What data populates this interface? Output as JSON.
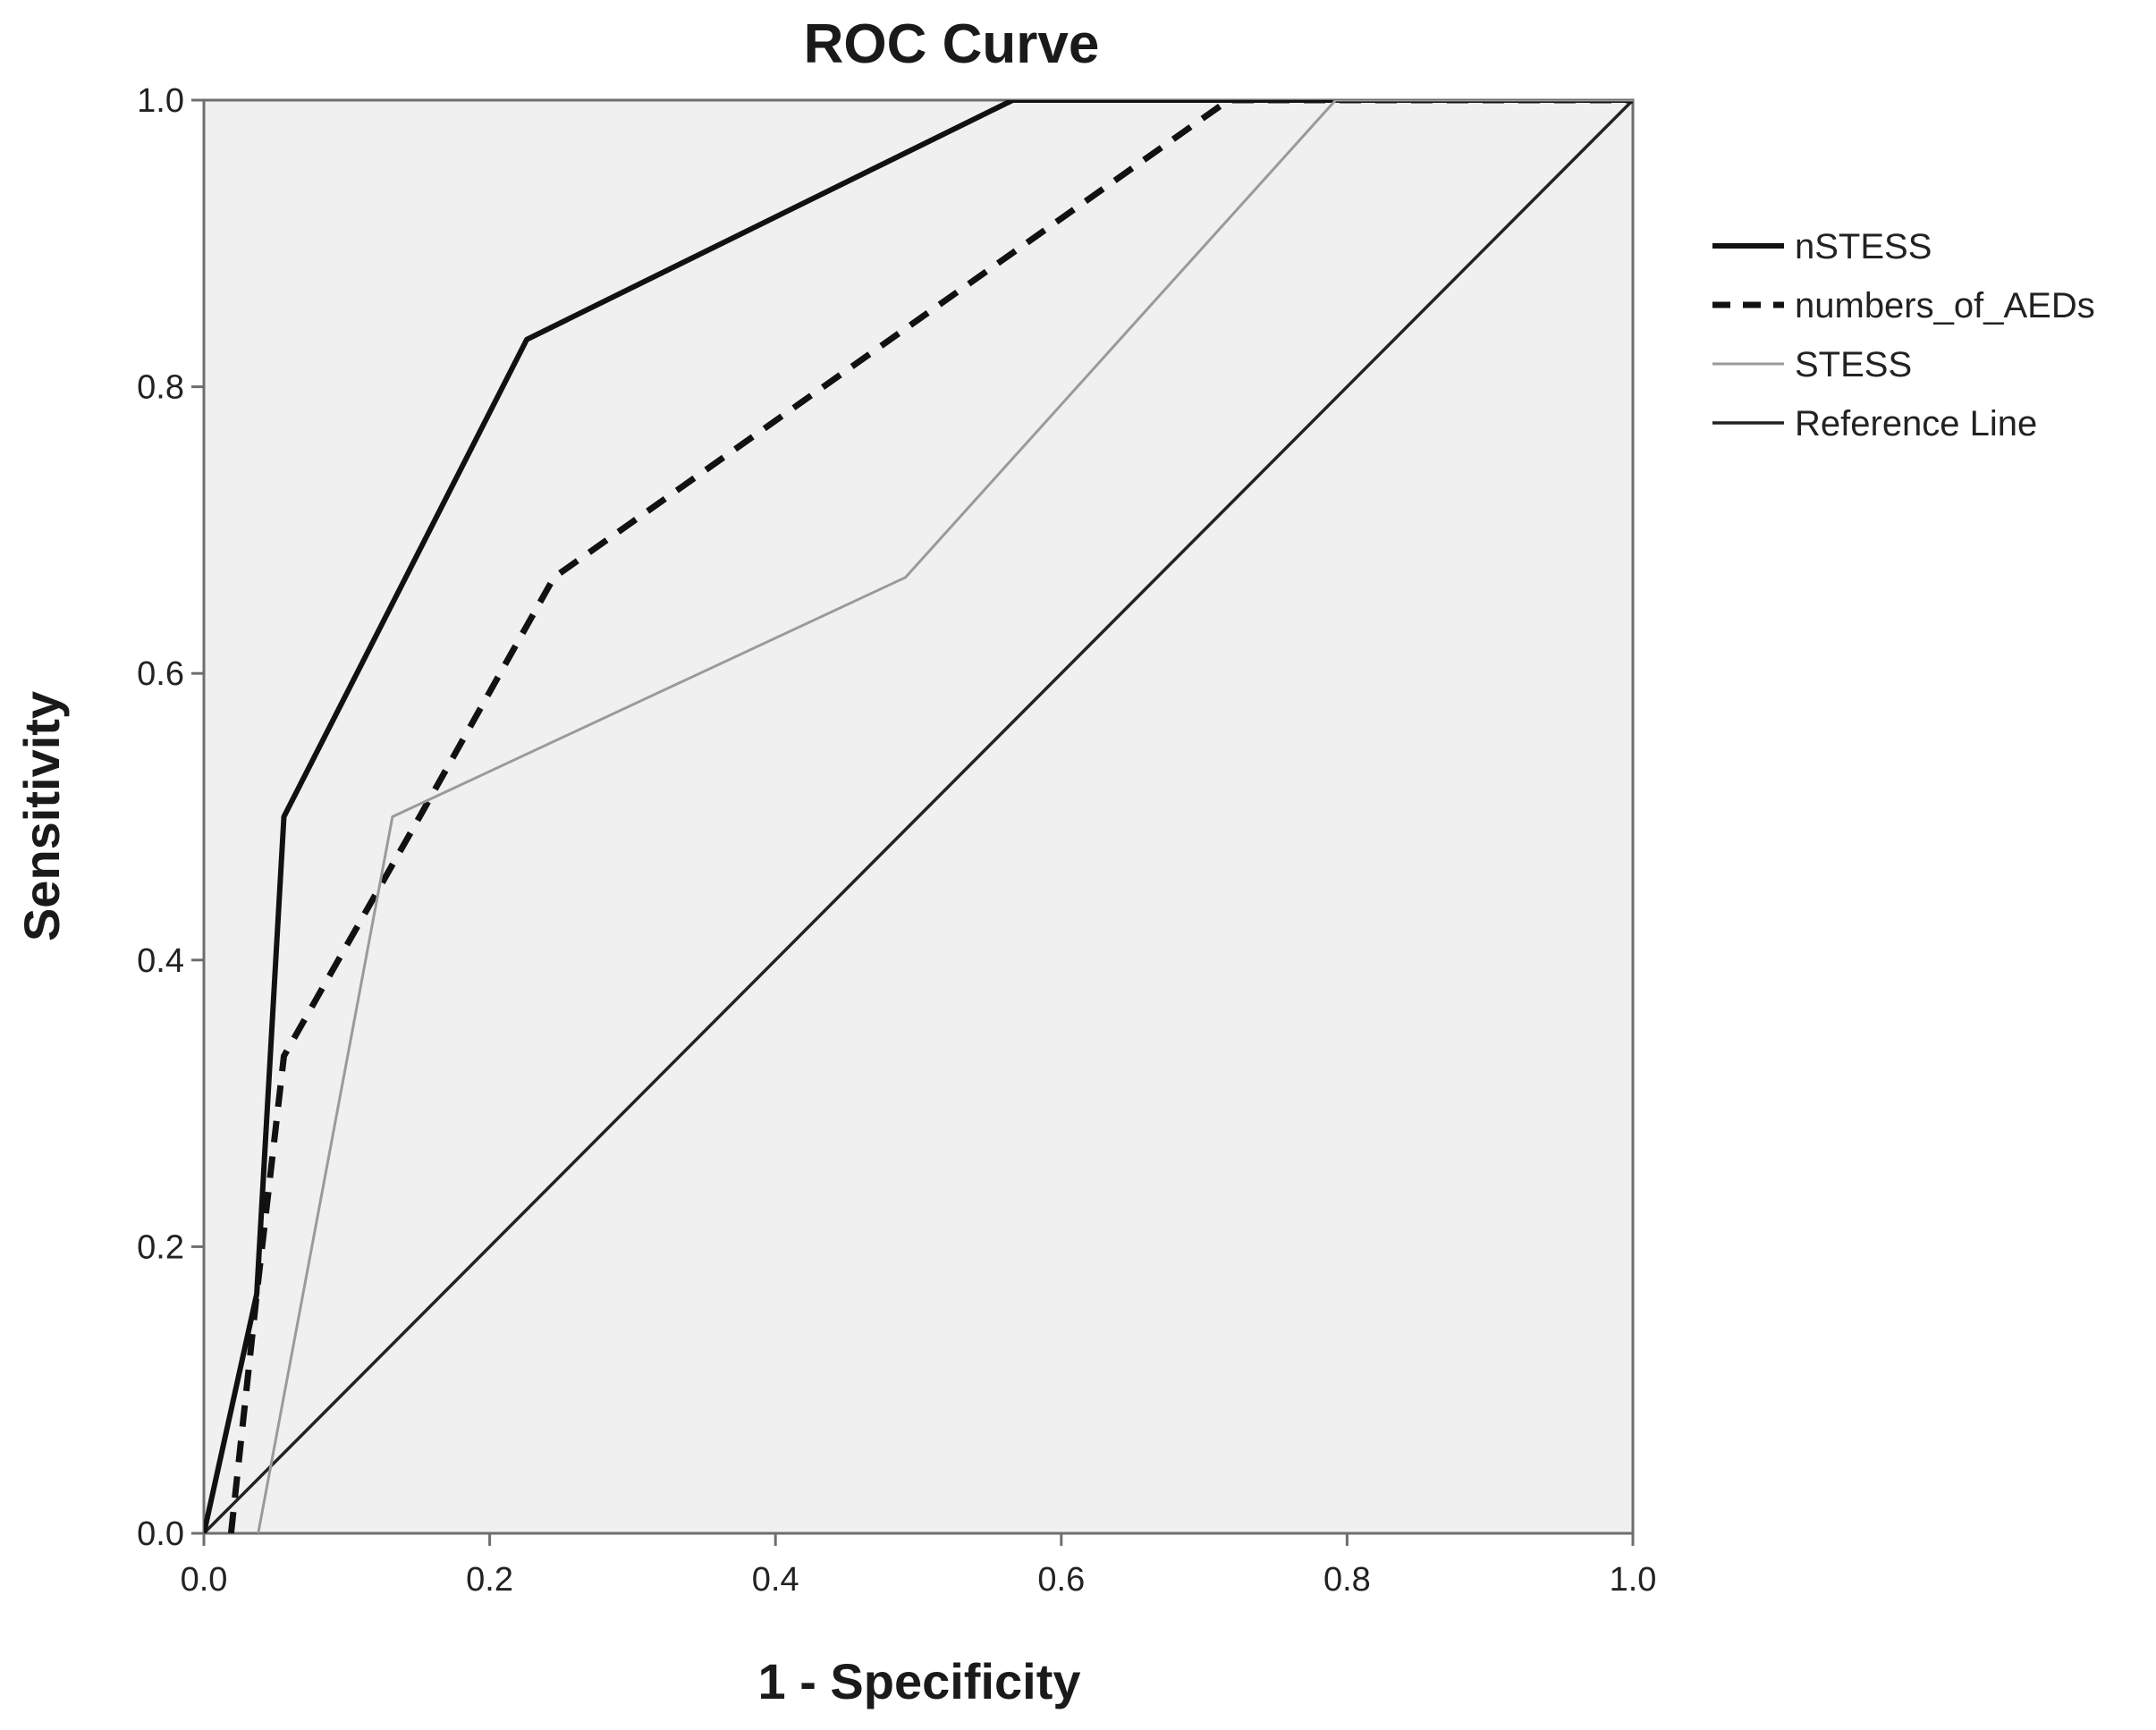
{
  "chart_data": {
    "type": "line",
    "title": "ROC Curve",
    "xlabel": "1 - Specificity",
    "ylabel": "Sensitivity",
    "xlim": [
      0,
      1
    ],
    "ylim": [
      0,
      1
    ],
    "xticks": [
      "0.0",
      "0.2",
      "0.4",
      "0.6",
      "0.8",
      "1.0"
    ],
    "yticks": [
      "0.0",
      "0.2",
      "0.4",
      "0.6",
      "0.8",
      "1.0"
    ],
    "legend_position": "right",
    "plot_background": "#f0f0f0",
    "series": [
      {
        "name": "nSTESS",
        "style": "solid-thick",
        "color": "#111111",
        "points": [
          [
            0.0,
            0.0
          ],
          [
            0.037,
            0.167
          ],
          [
            0.056,
            0.5
          ],
          [
            0.226,
            0.833
          ],
          [
            0.566,
            1.0
          ],
          [
            1.0,
            1.0
          ]
        ]
      },
      {
        "name": "numbers_of_AEDs",
        "style": "dashed-thick",
        "color": "#111111",
        "points": [
          [
            0.019,
            0.0
          ],
          [
            0.037,
            0.167
          ],
          [
            0.056,
            0.333
          ],
          [
            0.151,
            0.5
          ],
          [
            0.245,
            0.667
          ],
          [
            0.717,
            1.0
          ],
          [
            1.0,
            1.0
          ]
        ]
      },
      {
        "name": "STESS",
        "style": "solid-thin",
        "color": "#9a9a9a",
        "points": [
          [
            0.038,
            0.0
          ],
          [
            0.132,
            0.5
          ],
          [
            0.491,
            0.667
          ],
          [
            0.792,
            1.0
          ],
          [
            1.0,
            1.0
          ]
        ]
      },
      {
        "name": "Reference Line",
        "style": "solid-medium",
        "color": "#222222",
        "points": [
          [
            0.0,
            0.0
          ],
          [
            1.0,
            1.0
          ]
        ]
      }
    ]
  }
}
